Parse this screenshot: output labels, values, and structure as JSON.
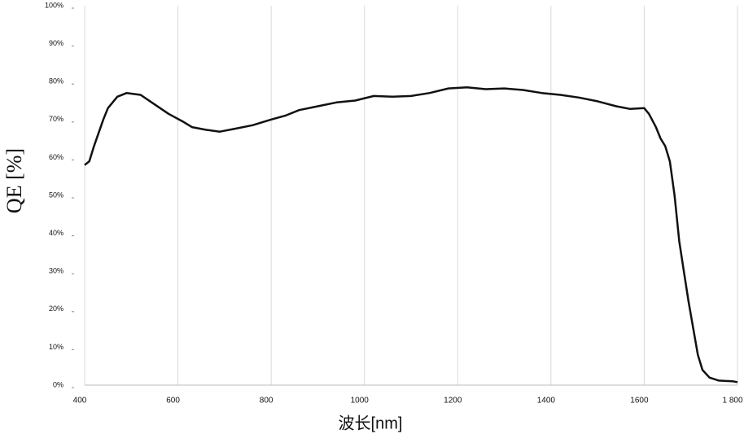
{
  "chart_data": {
    "type": "line",
    "xlabel": "波长[nm]",
    "ylabel": "QE [%]",
    "x": [
      400,
      410,
      420,
      440,
      450,
      470,
      490,
      520,
      550,
      580,
      610,
      630,
      660,
      690,
      720,
      760,
      800,
      830,
      860,
      900,
      940,
      980,
      1020,
      1060,
      1100,
      1140,
      1180,
      1220,
      1260,
      1300,
      1340,
      1380,
      1420,
      1460,
      1500,
      1540,
      1570,
      1600,
      1610,
      1625,
      1635,
      1645,
      1655,
      1665,
      1675,
      1685,
      1695,
      1705,
      1715,
      1725,
      1740,
      1760,
      1790,
      1800
    ],
    "values": [
      58,
      59,
      63,
      70,
      73,
      76,
      77,
      76.5,
      74,
      71.5,
      69.5,
      68,
      67.3,
      66.8,
      67.5,
      68.5,
      70,
      71,
      72.5,
      73.5,
      74.5,
      75,
      76.2,
      76,
      76.2,
      77,
      78.2,
      78.5,
      78,
      78.2,
      77.8,
      77,
      76.5,
      75.8,
      74.8,
      73.5,
      72.8,
      73,
      71.5,
      68,
      65,
      63,
      59,
      50,
      38,
      30,
      22,
      15,
      8,
      4,
      2,
      1.2,
      1,
      0.8
    ],
    "color": "#111111",
    "xlim": [
      400,
      1800
    ],
    "ylim": [
      0,
      100
    ],
    "xticks": [
      400,
      600,
      800,
      1000,
      1200,
      1400,
      1600,
      {
        "value": 1800,
        "label": "1 800"
      }
    ],
    "yticks": [
      {
        "value": 0,
        "label": "0%"
      },
      {
        "value": 10,
        "label": "10%"
      },
      {
        "value": 20,
        "label": "20%"
      },
      {
        "value": 30,
        "label": "30%"
      },
      {
        "value": 40,
        "label": "40%"
      },
      {
        "value": 50,
        "label": "50%"
      },
      {
        "value": 60,
        "label": "60%"
      },
      {
        "value": 70,
        "label": "70%"
      },
      {
        "value": 80,
        "label": "80%"
      },
      {
        "value": 90,
        "label": "90%"
      },
      {
        "value": 100,
        "label": "100%"
      }
    ],
    "grid": "x"
  }
}
